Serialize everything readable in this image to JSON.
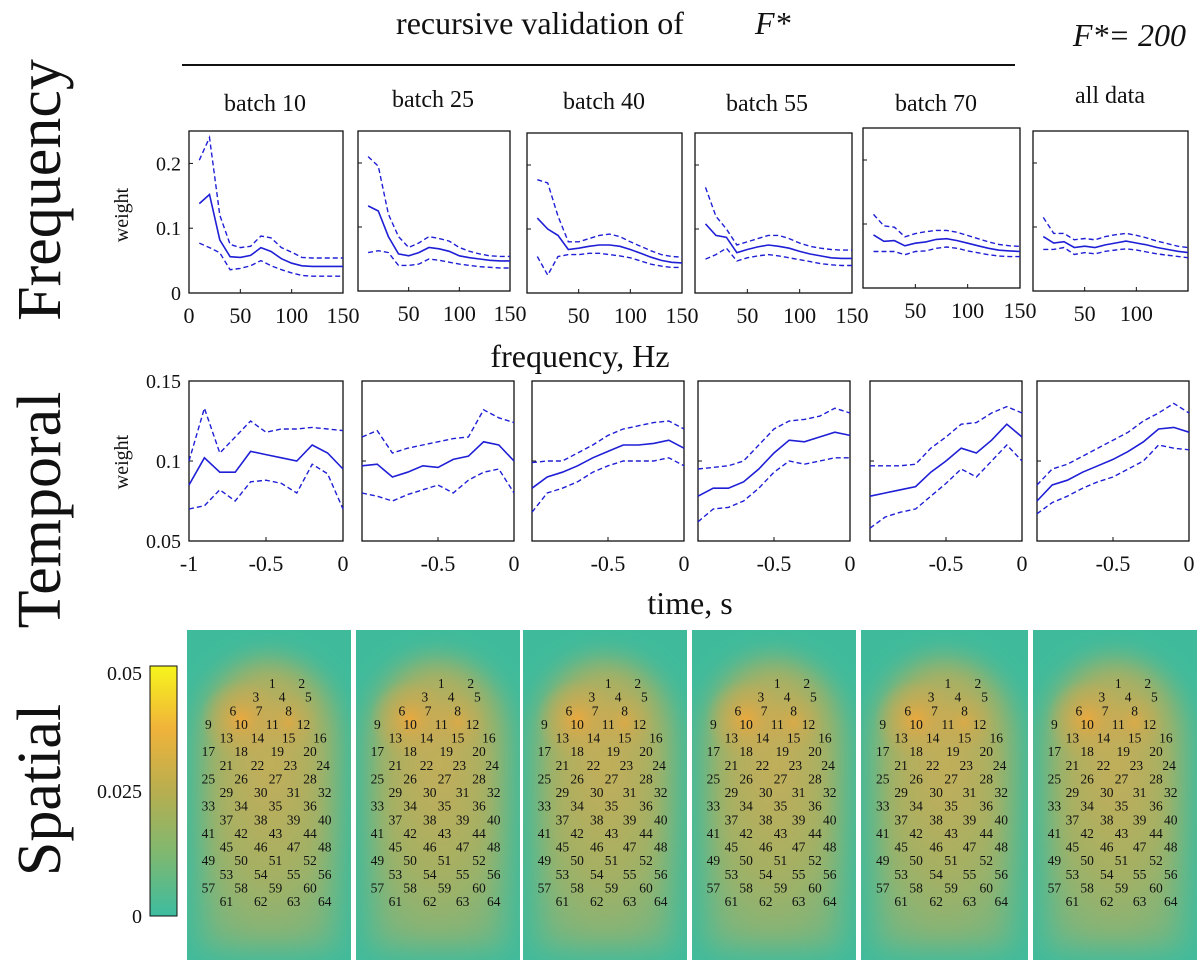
{
  "figure": {
    "title": "recursive validation of",
    "title_symbol": "F*",
    "fstar_label": "F*= 200",
    "row_labels": {
      "frequency": "Frequency",
      "temporal": "Temporal",
      "spatial": "Spatial"
    },
    "batch_labels": [
      "batch 10",
      "batch 25",
      "batch 40",
      "batch 55",
      "batch 70",
      "all data"
    ],
    "colors": {
      "mean_line": "#1f1fd6",
      "bound_line": "#1f1fd6",
      "axis": "#111111"
    }
  },
  "chart_data": [
    {
      "id": "frequency",
      "type": "line",
      "xlabel": "frequency, Hz",
      "ylabel": "weight",
      "ylim": [
        0,
        0.25
      ],
      "yticks": [
        0,
        0.1,
        0.2
      ],
      "ytick_labels": [
        "0",
        "0.1",
        "0.2"
      ],
      "x": [
        10,
        20,
        30,
        40,
        50,
        60,
        70,
        80,
        90,
        100,
        110,
        120,
        130,
        140,
        150
      ],
      "panels": [
        {
          "name": "batch 10",
          "xlim": [
            0,
            150
          ],
          "xticks": [
            0,
            50,
            100,
            150
          ],
          "xtick_labels": [
            "0",
            "50",
            "100",
            "150"
          ],
          "mean": [
            0.138,
            0.152,
            0.082,
            0.056,
            0.055,
            0.058,
            0.07,
            0.064,
            0.053,
            0.046,
            0.042,
            0.041,
            0.041,
            0.041,
            0.041
          ],
          "upper": [
            0.205,
            0.24,
            0.12,
            0.075,
            0.07,
            0.072,
            0.088,
            0.085,
            0.07,
            0.063,
            0.055,
            0.054,
            0.054,
            0.054,
            0.054
          ],
          "lower": [
            0.077,
            0.07,
            0.062,
            0.036,
            0.038,
            0.042,
            0.05,
            0.042,
            0.036,
            0.031,
            0.027,
            0.026,
            0.026,
            0.026,
            0.026
          ]
        },
        {
          "name": "batch 25",
          "xlim": [
            0,
            150
          ],
          "xticks": [
            50,
            100,
            150
          ],
          "xtick_labels": [
            "50",
            "100",
            "150"
          ],
          "mean": [
            0.133,
            0.125,
            0.085,
            0.058,
            0.055,
            0.06,
            0.068,
            0.066,
            0.062,
            0.055,
            0.052,
            0.05,
            0.048,
            0.047,
            0.047
          ],
          "upper": [
            0.21,
            0.195,
            0.12,
            0.085,
            0.068,
            0.075,
            0.085,
            0.082,
            0.078,
            0.068,
            0.062,
            0.058,
            0.055,
            0.054,
            0.054
          ],
          "lower": [
            0.06,
            0.063,
            0.06,
            0.04,
            0.04,
            0.042,
            0.05,
            0.048,
            0.045,
            0.042,
            0.04,
            0.038,
            0.037,
            0.036,
            0.036
          ]
        },
        {
          "name": "batch 40",
          "xlim": [
            0,
            150
          ],
          "xticks": [
            50,
            100,
            150
          ],
          "xtick_labels": [
            "50",
            "100",
            "150"
          ],
          "mean": [
            0.117,
            0.1,
            0.09,
            0.068,
            0.07,
            0.073,
            0.075,
            0.075,
            0.073,
            0.068,
            0.062,
            0.056,
            0.051,
            0.048,
            0.047
          ],
          "upper": [
            0.177,
            0.172,
            0.12,
            0.08,
            0.08,
            0.085,
            0.09,
            0.092,
            0.088,
            0.08,
            0.073,
            0.066,
            0.06,
            0.057,
            0.056
          ],
          "lower": [
            0.057,
            0.028,
            0.057,
            0.06,
            0.06,
            0.062,
            0.062,
            0.06,
            0.058,
            0.055,
            0.05,
            0.045,
            0.042,
            0.04,
            0.04
          ]
        },
        {
          "name": "batch 55",
          "xlim": [
            0,
            150
          ],
          "xticks": [
            50,
            100,
            150
          ],
          "xtick_labels": [
            "50",
            "100",
            "150"
          ],
          "mean": [
            0.108,
            0.09,
            0.087,
            0.063,
            0.068,
            0.072,
            0.075,
            0.073,
            0.07,
            0.065,
            0.061,
            0.058,
            0.055,
            0.054,
            0.054
          ],
          "upper": [
            0.165,
            0.12,
            0.1,
            0.075,
            0.08,
            0.085,
            0.09,
            0.09,
            0.085,
            0.078,
            0.073,
            0.07,
            0.068,
            0.067,
            0.067
          ],
          "lower": [
            0.053,
            0.06,
            0.07,
            0.05,
            0.055,
            0.058,
            0.06,
            0.058,
            0.055,
            0.052,
            0.049,
            0.046,
            0.044,
            0.043,
            0.043
          ]
        },
        {
          "name": "batch 70",
          "xlim": [
            0,
            150
          ],
          "xticks": [
            50,
            100,
            150
          ],
          "xtick_labels": [
            "50",
            "100",
            "150"
          ],
          "mean": [
            0.083,
            0.073,
            0.074,
            0.066,
            0.07,
            0.072,
            0.076,
            0.077,
            0.074,
            0.07,
            0.066,
            0.062,
            0.059,
            0.058,
            0.057
          ],
          "upper": [
            0.115,
            0.097,
            0.095,
            0.08,
            0.085,
            0.088,
            0.09,
            0.09,
            0.087,
            0.082,
            0.077,
            0.072,
            0.068,
            0.066,
            0.065
          ],
          "lower": [
            0.057,
            0.057,
            0.057,
            0.052,
            0.057,
            0.058,
            0.062,
            0.064,
            0.062,
            0.058,
            0.055,
            0.052,
            0.05,
            0.049,
            0.049
          ]
        },
        {
          "name": "all data",
          "xlim": [
            0,
            150
          ],
          "xticks": [
            50,
            100
          ],
          "xtick_labels": [
            "50",
            "100"
          ],
          "mean": [
            0.085,
            0.075,
            0.077,
            0.068,
            0.07,
            0.068,
            0.072,
            0.075,
            0.078,
            0.075,
            0.072,
            0.068,
            0.065,
            0.062,
            0.06
          ],
          "upper": [
            0.115,
            0.09,
            0.09,
            0.08,
            0.082,
            0.08,
            0.085,
            0.088,
            0.09,
            0.087,
            0.083,
            0.078,
            0.074,
            0.07,
            0.068
          ],
          "lower": [
            0.065,
            0.065,
            0.068,
            0.057,
            0.06,
            0.058,
            0.062,
            0.064,
            0.066,
            0.064,
            0.061,
            0.058,
            0.056,
            0.054,
            0.052
          ]
        }
      ]
    },
    {
      "id": "temporal",
      "type": "line",
      "xlabel": "time, s",
      "ylabel": "weight",
      "ylim": [
        0.05,
        0.15
      ],
      "yticks": [
        0.05,
        0.1,
        0.15
      ],
      "ytick_labels": [
        "0.05",
        "0.1",
        "0.15"
      ],
      "x": [
        -1,
        -0.9,
        -0.8,
        -0.7,
        -0.6,
        -0.5,
        -0.4,
        -0.3,
        -0.2,
        -0.1,
        0
      ],
      "panels": [
        {
          "name": "batch 10",
          "xlim": [
            -1,
            0
          ],
          "xticks": [
            -1,
            -0.5,
            0
          ],
          "xtick_labels": [
            "-1",
            "-0.5",
            "0"
          ],
          "mean": [
            0.085,
            0.102,
            0.093,
            0.093,
            0.106,
            0.104,
            0.102,
            0.1,
            0.11,
            0.105,
            0.095
          ],
          "upper": [
            0.1,
            0.133,
            0.105,
            0.115,
            0.125,
            0.118,
            0.12,
            0.12,
            0.121,
            0.12,
            0.119
          ],
          "lower": [
            0.07,
            0.072,
            0.082,
            0.075,
            0.087,
            0.088,
            0.086,
            0.08,
            0.098,
            0.092,
            0.07
          ]
        },
        {
          "name": "batch 25",
          "xlim": [
            -1,
            0
          ],
          "xticks": [
            -0.5,
            0
          ],
          "xtick_labels": [
            "-0.5",
            "0"
          ],
          "mean": [
            0.097,
            0.098,
            0.09,
            0.093,
            0.097,
            0.096,
            0.101,
            0.103,
            0.112,
            0.11,
            0.1
          ],
          "upper": [
            0.115,
            0.119,
            0.105,
            0.108,
            0.11,
            0.112,
            0.114,
            0.115,
            0.132,
            0.127,
            0.124
          ],
          "lower": [
            0.08,
            0.078,
            0.075,
            0.079,
            0.082,
            0.085,
            0.08,
            0.088,
            0.093,
            0.095,
            0.08
          ]
        },
        {
          "name": "batch 40",
          "xlim": [
            -1,
            0
          ],
          "xticks": [
            -0.5,
            0
          ],
          "xtick_labels": [
            "-0.5",
            "0"
          ],
          "mean": [
            0.083,
            0.09,
            0.093,
            0.097,
            0.102,
            0.106,
            0.11,
            0.11,
            0.111,
            0.113,
            0.108
          ],
          "upper": [
            0.099,
            0.1,
            0.1,
            0.105,
            0.11,
            0.116,
            0.12,
            0.122,
            0.124,
            0.125,
            0.12
          ],
          "lower": [
            0.068,
            0.08,
            0.083,
            0.087,
            0.093,
            0.097,
            0.1,
            0.1,
            0.1,
            0.102,
            0.097
          ]
        },
        {
          "name": "batch 55",
          "xlim": [
            -1,
            0
          ],
          "xticks": [
            -0.5,
            0
          ],
          "xtick_labels": [
            "-0.5",
            "0"
          ],
          "mean": [
            0.078,
            0.083,
            0.083,
            0.087,
            0.095,
            0.105,
            0.113,
            0.112,
            0.115,
            0.118,
            0.116
          ],
          "upper": [
            0.095,
            0.096,
            0.097,
            0.1,
            0.11,
            0.12,
            0.125,
            0.126,
            0.128,
            0.133,
            0.13
          ],
          "lower": [
            0.062,
            0.07,
            0.071,
            0.075,
            0.083,
            0.093,
            0.1,
            0.098,
            0.1,
            0.102,
            0.102
          ]
        },
        {
          "name": "batch 70",
          "xlim": [
            -1,
            0
          ],
          "xticks": [
            -0.5,
            0
          ],
          "xtick_labels": [
            "-0.5",
            "0"
          ],
          "mean": [
            0.078,
            0.08,
            0.082,
            0.084,
            0.093,
            0.1,
            0.108,
            0.105,
            0.113,
            0.123,
            0.115
          ],
          "upper": [
            0.097,
            0.097,
            0.097,
            0.098,
            0.108,
            0.115,
            0.123,
            0.124,
            0.13,
            0.134,
            0.13
          ],
          "lower": [
            0.058,
            0.065,
            0.068,
            0.07,
            0.078,
            0.086,
            0.095,
            0.09,
            0.1,
            0.11,
            0.1
          ]
        },
        {
          "name": "all data",
          "xlim": [
            -1,
            0
          ],
          "xticks": [
            -0.5,
            0
          ],
          "xtick_labels": [
            "-0.5",
            "0"
          ],
          "mean": [
            0.075,
            0.085,
            0.088,
            0.093,
            0.097,
            0.101,
            0.106,
            0.112,
            0.12,
            0.121,
            0.118
          ],
          "upper": [
            0.085,
            0.095,
            0.098,
            0.103,
            0.108,
            0.113,
            0.118,
            0.125,
            0.13,
            0.136,
            0.13
          ],
          "lower": [
            0.067,
            0.074,
            0.078,
            0.083,
            0.087,
            0.09,
            0.095,
            0.1,
            0.11,
            0.108,
            0.107
          ]
        }
      ]
    },
    {
      "id": "spatial",
      "type": "heatmap",
      "colorbar": {
        "min": 0,
        "max": 0.05,
        "tick_labels": [
          "0.05",
          "0.025",
          "0"
        ],
        "colormap": "parula"
      },
      "electrode_labels": [
        "1",
        "2",
        "3",
        "4",
        "5",
        "6",
        "7",
        "8",
        "9",
        "10",
        "11",
        "12",
        "13",
        "14",
        "15",
        "16",
        "17",
        "18",
        "19",
        "20",
        "21",
        "22",
        "23",
        "24",
        "25",
        "26",
        "27",
        "28",
        "29",
        "30",
        "31",
        "32",
        "33",
        "34",
        "35",
        "36",
        "37",
        "38",
        "39",
        "40",
        "41",
        "42",
        "43",
        "44",
        "45",
        "46",
        "47",
        "48",
        "49",
        "50",
        "51",
        "52",
        "53",
        "54",
        "55",
        "56",
        "57",
        "58",
        "59",
        "60",
        "61",
        "62",
        "63",
        "64"
      ],
      "panels": [
        "batch 10",
        "batch 25",
        "batch 40",
        "batch 55",
        "batch 70",
        "all data"
      ]
    }
  ]
}
